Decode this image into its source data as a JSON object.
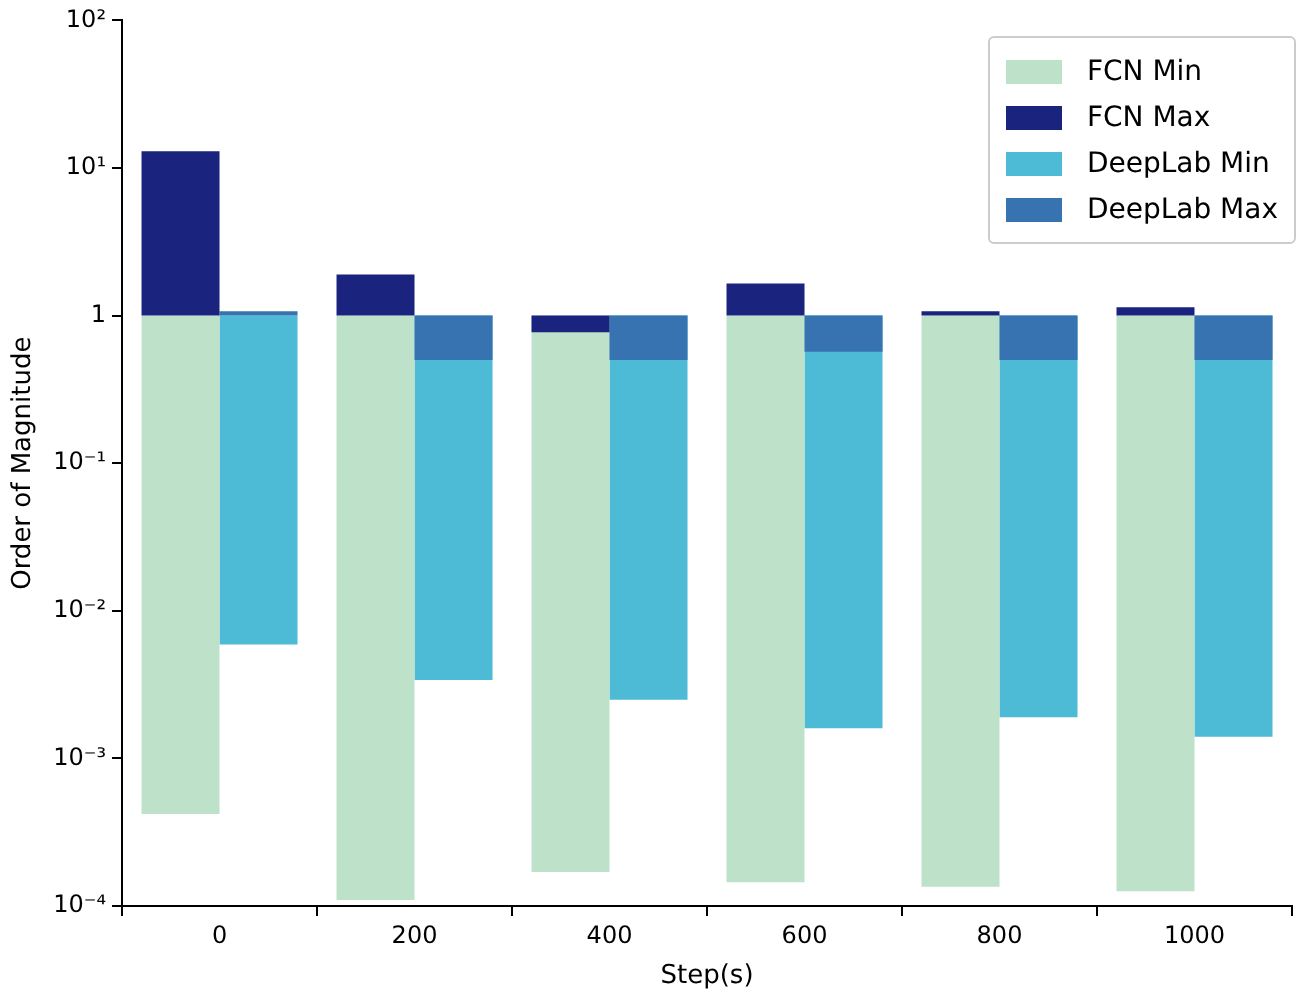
{
  "chart_data": {
    "type": "bar",
    "xlabel": "Step(s)",
    "ylabel": "Order of Magnitude",
    "categories": [
      "0",
      "200",
      "400",
      "600",
      "800",
      "1000"
    ],
    "log": "y",
    "ylim": [
      0.0001,
      100
    ],
    "yticks": [
      {
        "value": 0.0001,
        "label": "10⁻⁴"
      },
      {
        "value": 0.001,
        "label": "10⁻³"
      },
      {
        "value": 0.01,
        "label": "10⁻²"
      },
      {
        "value": 0.1,
        "label": "10⁻¹"
      },
      1,
      {
        "value": 10,
        "label": "10¹"
      },
      {
        "value": 100,
        "label": "10²"
      }
    ],
    "series": [
      {
        "name": "FCN Min",
        "color": "#bde2c9",
        "base": [
          1,
          1,
          1,
          1,
          1,
          1
        ],
        "values": [
          -0.99958,
          -0.99989,
          -0.99983,
          -0.999855,
          -0.999865,
          -0.999874
        ]
      },
      {
        "name": "FCN Max",
        "color": "#1a237e",
        "base": [
          1,
          1,
          1,
          1,
          1,
          1
        ],
        "values": [
          12,
          0.9,
          -0.23,
          0.65,
          0.07,
          0.14
        ]
      },
      {
        "name": "DeepLab Min",
        "color": "#4dbad6",
        "base": [
          1,
          1,
          1,
          1,
          1,
          1
        ],
        "values": [
          -0.9941,
          -0.9966,
          -0.9975,
          -0.9984,
          -0.9981,
          -0.9986
        ]
      },
      {
        "name": "DeepLab Max",
        "color": "#3773b0",
        "base": [
          1,
          1,
          1,
          1,
          1,
          1
        ],
        "values": [
          0.07,
          -0.5,
          -0.5,
          -0.43,
          -0.5,
          -0.5
        ]
      }
    ],
    "grid": false,
    "legend": "top right"
  }
}
